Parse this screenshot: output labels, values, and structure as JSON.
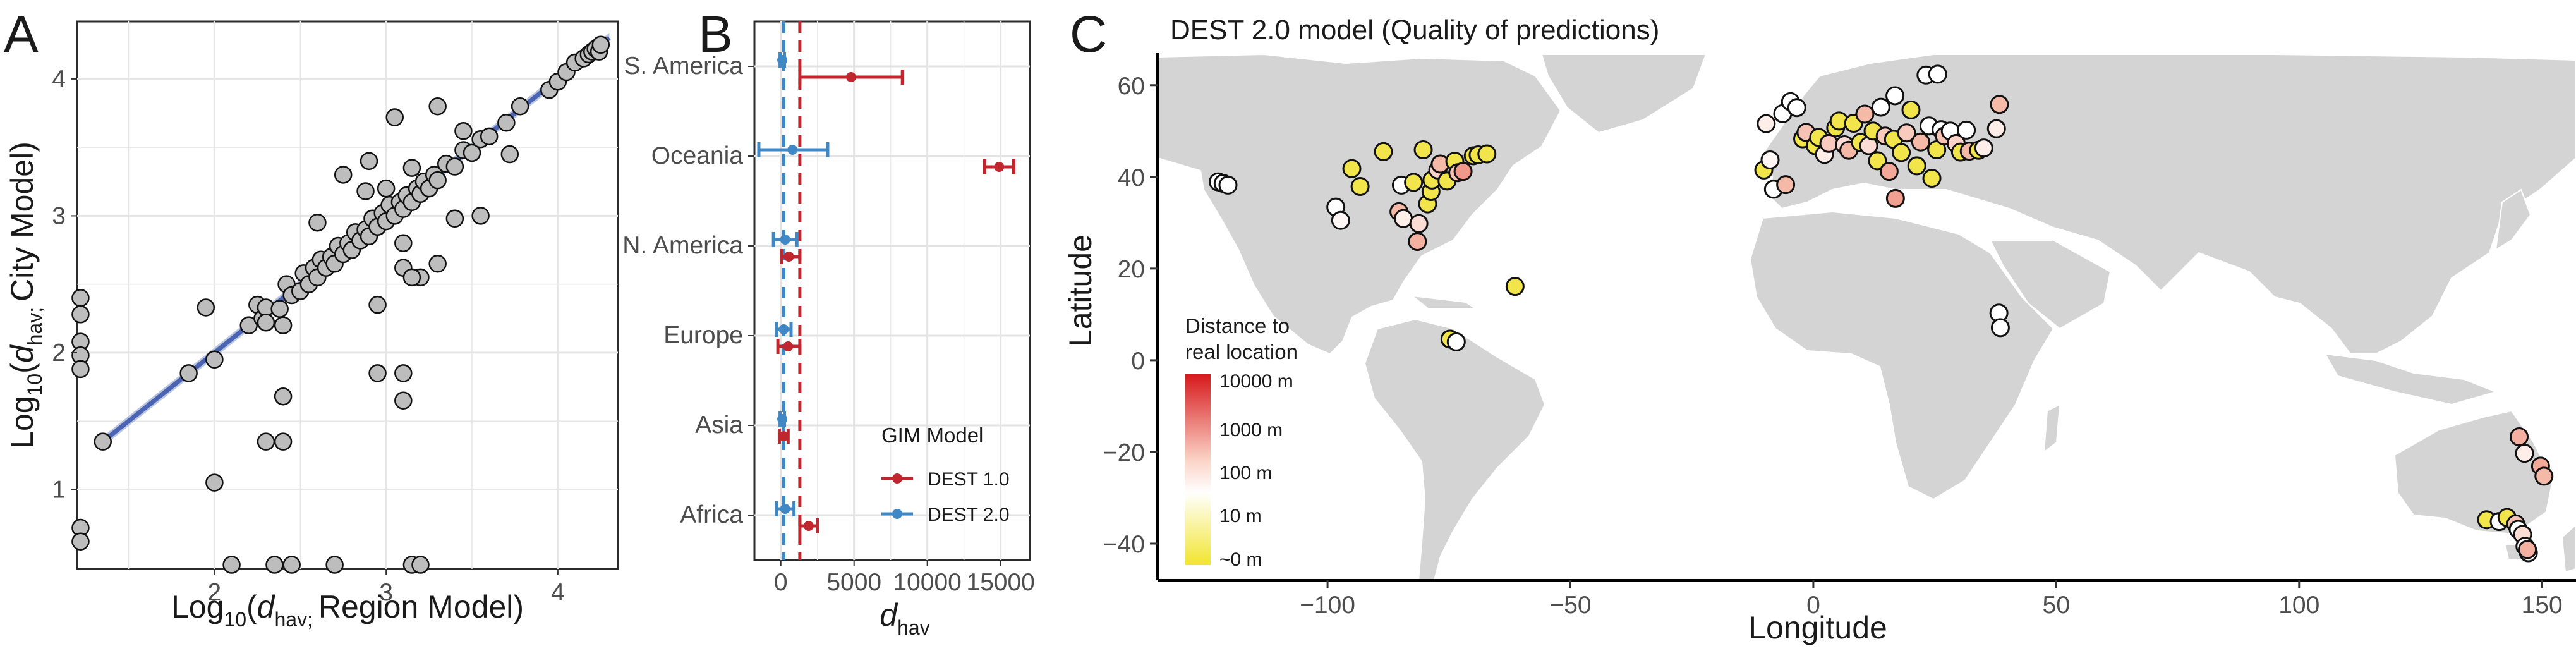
{
  "panels": {
    "A": {
      "letter": "A",
      "xlabel_pre": "Log",
      "xlabel_sub": "10",
      "xlabel_open": "(",
      "xlabel_d": "d",
      "xlabel_dsub": "hav; ",
      "xlabel_rest": "Region Model)",
      "ylabel_pre": "Log",
      "ylabel_sub": "10",
      "ylabel_open": "(",
      "ylabel_d": "d",
      "ylabel_dsub": "hav; ",
      "ylabel_rest": "City Model)"
    },
    "B": {
      "letter": "B",
      "xlabel_d": "d",
      "xlabel_sub": "hav",
      "legend_title": "GIM Model",
      "legend_items": [
        "DEST 1.0",
        "DEST 2.0"
      ]
    },
    "C": {
      "letter": "C",
      "title": "DEST 2.0 model (Quality of predictions)",
      "legend_title_1": "Distance to",
      "legend_title_2": "real location",
      "legend_labels": [
        "10000 m",
        "1000 m",
        "100 m",
        "10 m",
        "~0 m"
      ]
    }
  },
  "colors": {
    "dest1": "#c0262d",
    "dest2": "#3f88c5",
    "fit_line": "#4a63b3",
    "point_fill": "#bdbdbd",
    "land": "#d4d4d4",
    "grad_top": "#d7191c",
    "grad_mid": "#ffffff",
    "grad_bottom": "#f2e52e"
  },
  "chart_data": [
    {
      "type": "scatter",
      "panel": "A",
      "xlabel": "Log10(d hav; Region Model)",
      "ylabel": "Log10(d hav; City Model)",
      "xlim": [
        1.2,
        4.35
      ],
      "ylim": [
        0.42,
        4.42
      ],
      "xticks": [
        2,
        3,
        4
      ],
      "yticks": [
        1,
        2,
        3,
        4
      ],
      "grid": true,
      "trend_line": {
        "x": [
          1.35,
          4.3
        ],
        "y": [
          1.35,
          4.3
        ]
      },
      "points": [
        [
          1.35,
          1.35
        ],
        [
          1.85,
          1.85
        ],
        [
          1.95,
          2.33
        ],
        [
          2.0,
          1.95
        ],
        [
          2.2,
          2.2
        ],
        [
          2.25,
          2.35
        ],
        [
          2.28,
          2.25
        ],
        [
          2.3,
          2.33
        ],
        [
          2.38,
          2.32
        ],
        [
          2.42,
          2.5
        ],
        [
          2.45,
          2.42
        ],
        [
          2.5,
          2.45
        ],
        [
          2.52,
          2.58
        ],
        [
          2.55,
          2.5
        ],
        [
          2.58,
          2.62
        ],
        [
          2.6,
          2.55
        ],
        [
          2.62,
          2.68
        ],
        [
          2.65,
          2.62
        ],
        [
          2.68,
          2.7
        ],
        [
          2.7,
          2.65
        ],
        [
          2.72,
          2.78
        ],
        [
          2.75,
          2.72
        ],
        [
          2.78,
          2.8
        ],
        [
          2.8,
          2.75
        ],
        [
          2.82,
          2.88
        ],
        [
          2.85,
          2.82
        ],
        [
          2.88,
          2.9
        ],
        [
          2.9,
          2.85
        ],
        [
          2.92,
          2.98
        ],
        [
          2.95,
          2.92
        ],
        [
          2.98,
          3.02
        ],
        [
          3.0,
          2.96
        ],
        [
          3.02,
          3.08
        ],
        [
          3.05,
          3.0
        ],
        [
          3.08,
          3.1
        ],
        [
          3.1,
          3.05
        ],
        [
          3.12,
          3.15
        ],
        [
          3.15,
          3.1
        ],
        [
          3.18,
          3.2
        ],
        [
          3.2,
          3.16
        ],
        [
          3.22,
          3.25
        ],
        [
          3.25,
          3.2
        ],
        [
          3.28,
          3.3
        ],
        [
          3.3,
          3.26
        ],
        [
          3.35,
          3.38
        ],
        [
          3.4,
          3.36
        ],
        [
          3.45,
          3.48
        ],
        [
          3.5,
          3.46
        ],
        [
          3.55,
          3.56
        ],
        [
          3.6,
          3.58
        ],
        [
          3.7,
          3.68
        ],
        [
          3.78,
          3.8
        ],
        [
          3.95,
          3.92
        ],
        [
          4.0,
          3.98
        ],
        [
          4.05,
          4.05
        ],
        [
          4.1,
          4.12
        ],
        [
          4.15,
          4.15
        ],
        [
          4.18,
          4.18
        ],
        [
          4.2,
          4.2
        ],
        [
          4.22,
          4.22
        ],
        [
          4.24,
          4.2
        ],
        [
          4.25,
          4.25
        ],
        [
          2.6,
          2.95
        ],
        [
          2.75,
          3.3
        ],
        [
          2.9,
          3.4
        ],
        [
          3.05,
          3.72
        ],
        [
          3.15,
          3.35
        ],
        [
          3.3,
          3.8
        ],
        [
          3.45,
          3.62
        ],
        [
          3.72,
          3.45
        ],
        [
          2.88,
          3.18
        ],
        [
          3.0,
          3.2
        ],
        [
          3.2,
          2.55
        ],
        [
          3.1,
          2.62
        ],
        [
          3.4,
          2.98
        ],
        [
          3.55,
          3.0
        ],
        [
          3.3,
          2.65
        ],
        [
          2.95,
          2.35
        ],
        [
          3.1,
          2.8
        ],
        [
          3.15,
          2.55
        ],
        [
          2.3,
          2.22
        ],
        [
          2.4,
          2.2
        ],
        [
          2.0,
          1.05
        ],
        [
          2.3,
          1.35
        ],
        [
          2.4,
          1.35
        ],
        [
          2.4,
          1.68
        ],
        [
          2.95,
          1.85
        ],
        [
          3.1,
          1.85
        ],
        [
          3.1,
          1.65
        ],
        [
          1.22,
          2.4
        ],
        [
          1.22,
          2.28
        ],
        [
          1.22,
          2.08
        ],
        [
          1.22,
          1.98
        ],
        [
          1.22,
          1.88
        ],
        [
          1.22,
          0.72
        ],
        [
          1.22,
          0.62
        ],
        [
          2.1,
          0.45
        ],
        [
          2.35,
          0.45
        ],
        [
          2.45,
          0.45
        ],
        [
          2.7,
          0.45
        ],
        [
          3.15,
          0.45
        ],
        [
          3.2,
          0.45
        ]
      ]
    },
    {
      "type": "errorbar",
      "panel": "B",
      "xlabel": "d hav",
      "categories": [
        "S. America",
        "Oceania",
        "N. America",
        "Europe",
        "Asia",
        "Africa"
      ],
      "xlim": [
        -1800,
        17000
      ],
      "xticks": [
        0,
        5000,
        10000,
        15000
      ],
      "vlines": {
        "DEST 1.0": 1300,
        "DEST 2.0": 200
      },
      "series": [
        {
          "name": "DEST 1.0",
          "mean": [
            4800,
            14900,
            550,
            500,
            200,
            1900
          ],
          "low": [
            1300,
            13900,
            50,
            -200,
            -100,
            1300
          ],
          "high": [
            8300,
            15900,
            1300,
            1300,
            500,
            2500
          ]
        },
        {
          "name": "DEST 2.0",
          "mean": [
            100,
            800,
            300,
            200,
            100,
            300
          ],
          "low": [
            -50,
            -1500,
            -500,
            -300,
            -50,
            -300
          ],
          "high": [
            250,
            3200,
            1100,
            700,
            250,
            900
          ]
        }
      ]
    },
    {
      "type": "scatter",
      "panel": "C",
      "title": "DEST 2.0 model (Quality of predictions)",
      "xlabel": "Longitude",
      "ylabel": "Latitude",
      "xlim": [
        -135,
        157
      ],
      "ylim": [
        -48,
        67
      ],
      "xticks": [
        -100,
        -50,
        0,
        50,
        100,
        150
      ],
      "yticks": [
        -40,
        -20,
        0,
        20,
        40,
        60
      ],
      "color_legend": [
        "10000 m",
        "1000 m",
        "100 m",
        "10 m",
        "~0 m"
      ],
      "points": [
        [
          -122.5,
          38.9,
          0.05
        ],
        [
          -121.5,
          38.6,
          0.1
        ],
        [
          -120.5,
          38.2,
          0.05
        ],
        [
          -98.3,
          33.4,
          0.1
        ],
        [
          -97.3,
          30.5,
          0.15
        ],
        [
          -95.0,
          41.8,
          0.95
        ],
        [
          -93.3,
          37.9,
          0.92
        ],
        [
          -88.5,
          45.5,
          0.92
        ],
        [
          -85.3,
          32.4,
          0.5
        ],
        [
          -84.8,
          38.2,
          0.05
        ],
        [
          -84.4,
          30.9,
          0.2
        ],
        [
          -82.3,
          38.8,
          0.92
        ],
        [
          -81.5,
          25.9,
          0.55
        ],
        [
          -81.2,
          29.8,
          0.3
        ],
        [
          -80.3,
          45.9,
          0.97
        ],
        [
          -79.4,
          34.1,
          0.92
        ],
        [
          -78.7,
          36.8,
          0.92
        ],
        [
          -78.5,
          39.3,
          0.92
        ],
        [
          -77.3,
          41.5,
          0.35
        ],
        [
          -76.8,
          42.8,
          0.5
        ],
        [
          -75.4,
          39.1,
          0.92
        ],
        [
          -73.8,
          43.4,
          0.92
        ],
        [
          -73.2,
          40.9,
          0.45
        ],
        [
          -72.1,
          41.2,
          0.7
        ],
        [
          -70.0,
          44.6,
          0.92
        ],
        [
          -69.0,
          44.8,
          0.92
        ],
        [
          -67.2,
          45.0,
          0.92
        ],
        [
          -61.4,
          16.1,
          0.92
        ],
        [
          -74.8,
          4.6,
          0.92
        ],
        [
          -73.5,
          4.0,
          0.05
        ],
        [
          -10.2,
          41.5,
          0.92
        ],
        [
          -9.7,
          51.6,
          0.2
        ],
        [
          -8.9,
          43.7,
          0.15
        ],
        [
          -8.2,
          37.3,
          0.1
        ],
        [
          -6.3,
          53.8,
          0.05
        ],
        [
          -5.7,
          38.3,
          0.5
        ],
        [
          -4.7,
          56.4,
          0.05
        ],
        [
          -3.4,
          55.1,
          0.05
        ],
        [
          -2.2,
          48.3,
          0.92
        ],
        [
          -1.5,
          49.7,
          0.45
        ],
        [
          0.4,
          46.8,
          0.92
        ],
        [
          1.1,
          48.6,
          0.92
        ],
        [
          2.3,
          44.9,
          0.2
        ],
        [
          3.2,
          47.3,
          0.4
        ],
        [
          4.6,
          50.7,
          0.92
        ],
        [
          5.3,
          52.2,
          0.92
        ],
        [
          6.4,
          47.0,
          0.3
        ],
        [
          7.3,
          45.8,
          0.5
        ],
        [
          8.3,
          51.7,
          0.92
        ],
        [
          9.7,
          47.5,
          0.92
        ],
        [
          10.6,
          53.7,
          0.5
        ],
        [
          11.4,
          46.8,
          0.3
        ],
        [
          12.3,
          50.0,
          0.92
        ],
        [
          13.2,
          43.5,
          0.92
        ],
        [
          13.9,
          55.2,
          0.05
        ],
        [
          14.8,
          48.9,
          0.4
        ],
        [
          15.6,
          41.2,
          0.6
        ],
        [
          16.5,
          48.2,
          0.92
        ],
        [
          16.8,
          57.7,
          0.05
        ],
        [
          18.1,
          45.3,
          0.92
        ],
        [
          19.2,
          49.6,
          0.4
        ],
        [
          20.1,
          54.6,
          0.92
        ],
        [
          21.3,
          42.4,
          0.92
        ],
        [
          22.1,
          47.6,
          0.5
        ],
        [
          23.2,
          62.2,
          0.05
        ],
        [
          23.8,
          51.1,
          0.05
        ],
        [
          24.4,
          39.7,
          0.92
        ],
        [
          25.4,
          45.9,
          0.92
        ],
        [
          25.6,
          62.4,
          0.05
        ],
        [
          26.3,
          50.3,
          0.05
        ],
        [
          27.0,
          48.9,
          0.45
        ],
        [
          28.2,
          50.0,
          0.05
        ],
        [
          29.4,
          47.3,
          0.35
        ],
        [
          30.3,
          45.4,
          0.92
        ],
        [
          31.5,
          50.2,
          0.1
        ],
        [
          32.1,
          45.6,
          0.5
        ],
        [
          34.0,
          45.8,
          0.92
        ],
        [
          35.1,
          46.3,
          0.2
        ],
        [
          37.7,
          50.5,
          0.2
        ],
        [
          38.3,
          55.8,
          0.5
        ],
        [
          38.2,
          10.3,
          0.05
        ],
        [
          38.5,
          7.1,
          0.05
        ],
        [
          16.9,
          35.3,
          0.65
        ],
        [
          145.3,
          -16.7,
          0.55
        ],
        [
          146.4,
          -20.3,
          0.2
        ],
        [
          149.7,
          -23.1,
          0.6
        ],
        [
          150.4,
          -25.3,
          0.5
        ],
        [
          138.6,
          -34.8,
          0.92
        ],
        [
          141.2,
          -35.2,
          0.1
        ],
        [
          142.8,
          -34.3,
          0.92
        ],
        [
          144.6,
          -35.7,
          0.45
        ],
        [
          145.1,
          -36.9,
          0.05
        ],
        [
          146.0,
          -38.0,
          0.3
        ],
        [
          146.5,
          -40.6,
          0.05
        ],
        [
          147.2,
          -42.0,
          0.05
        ],
        [
          147.0,
          -41.3,
          0.55
        ]
      ]
    }
  ]
}
